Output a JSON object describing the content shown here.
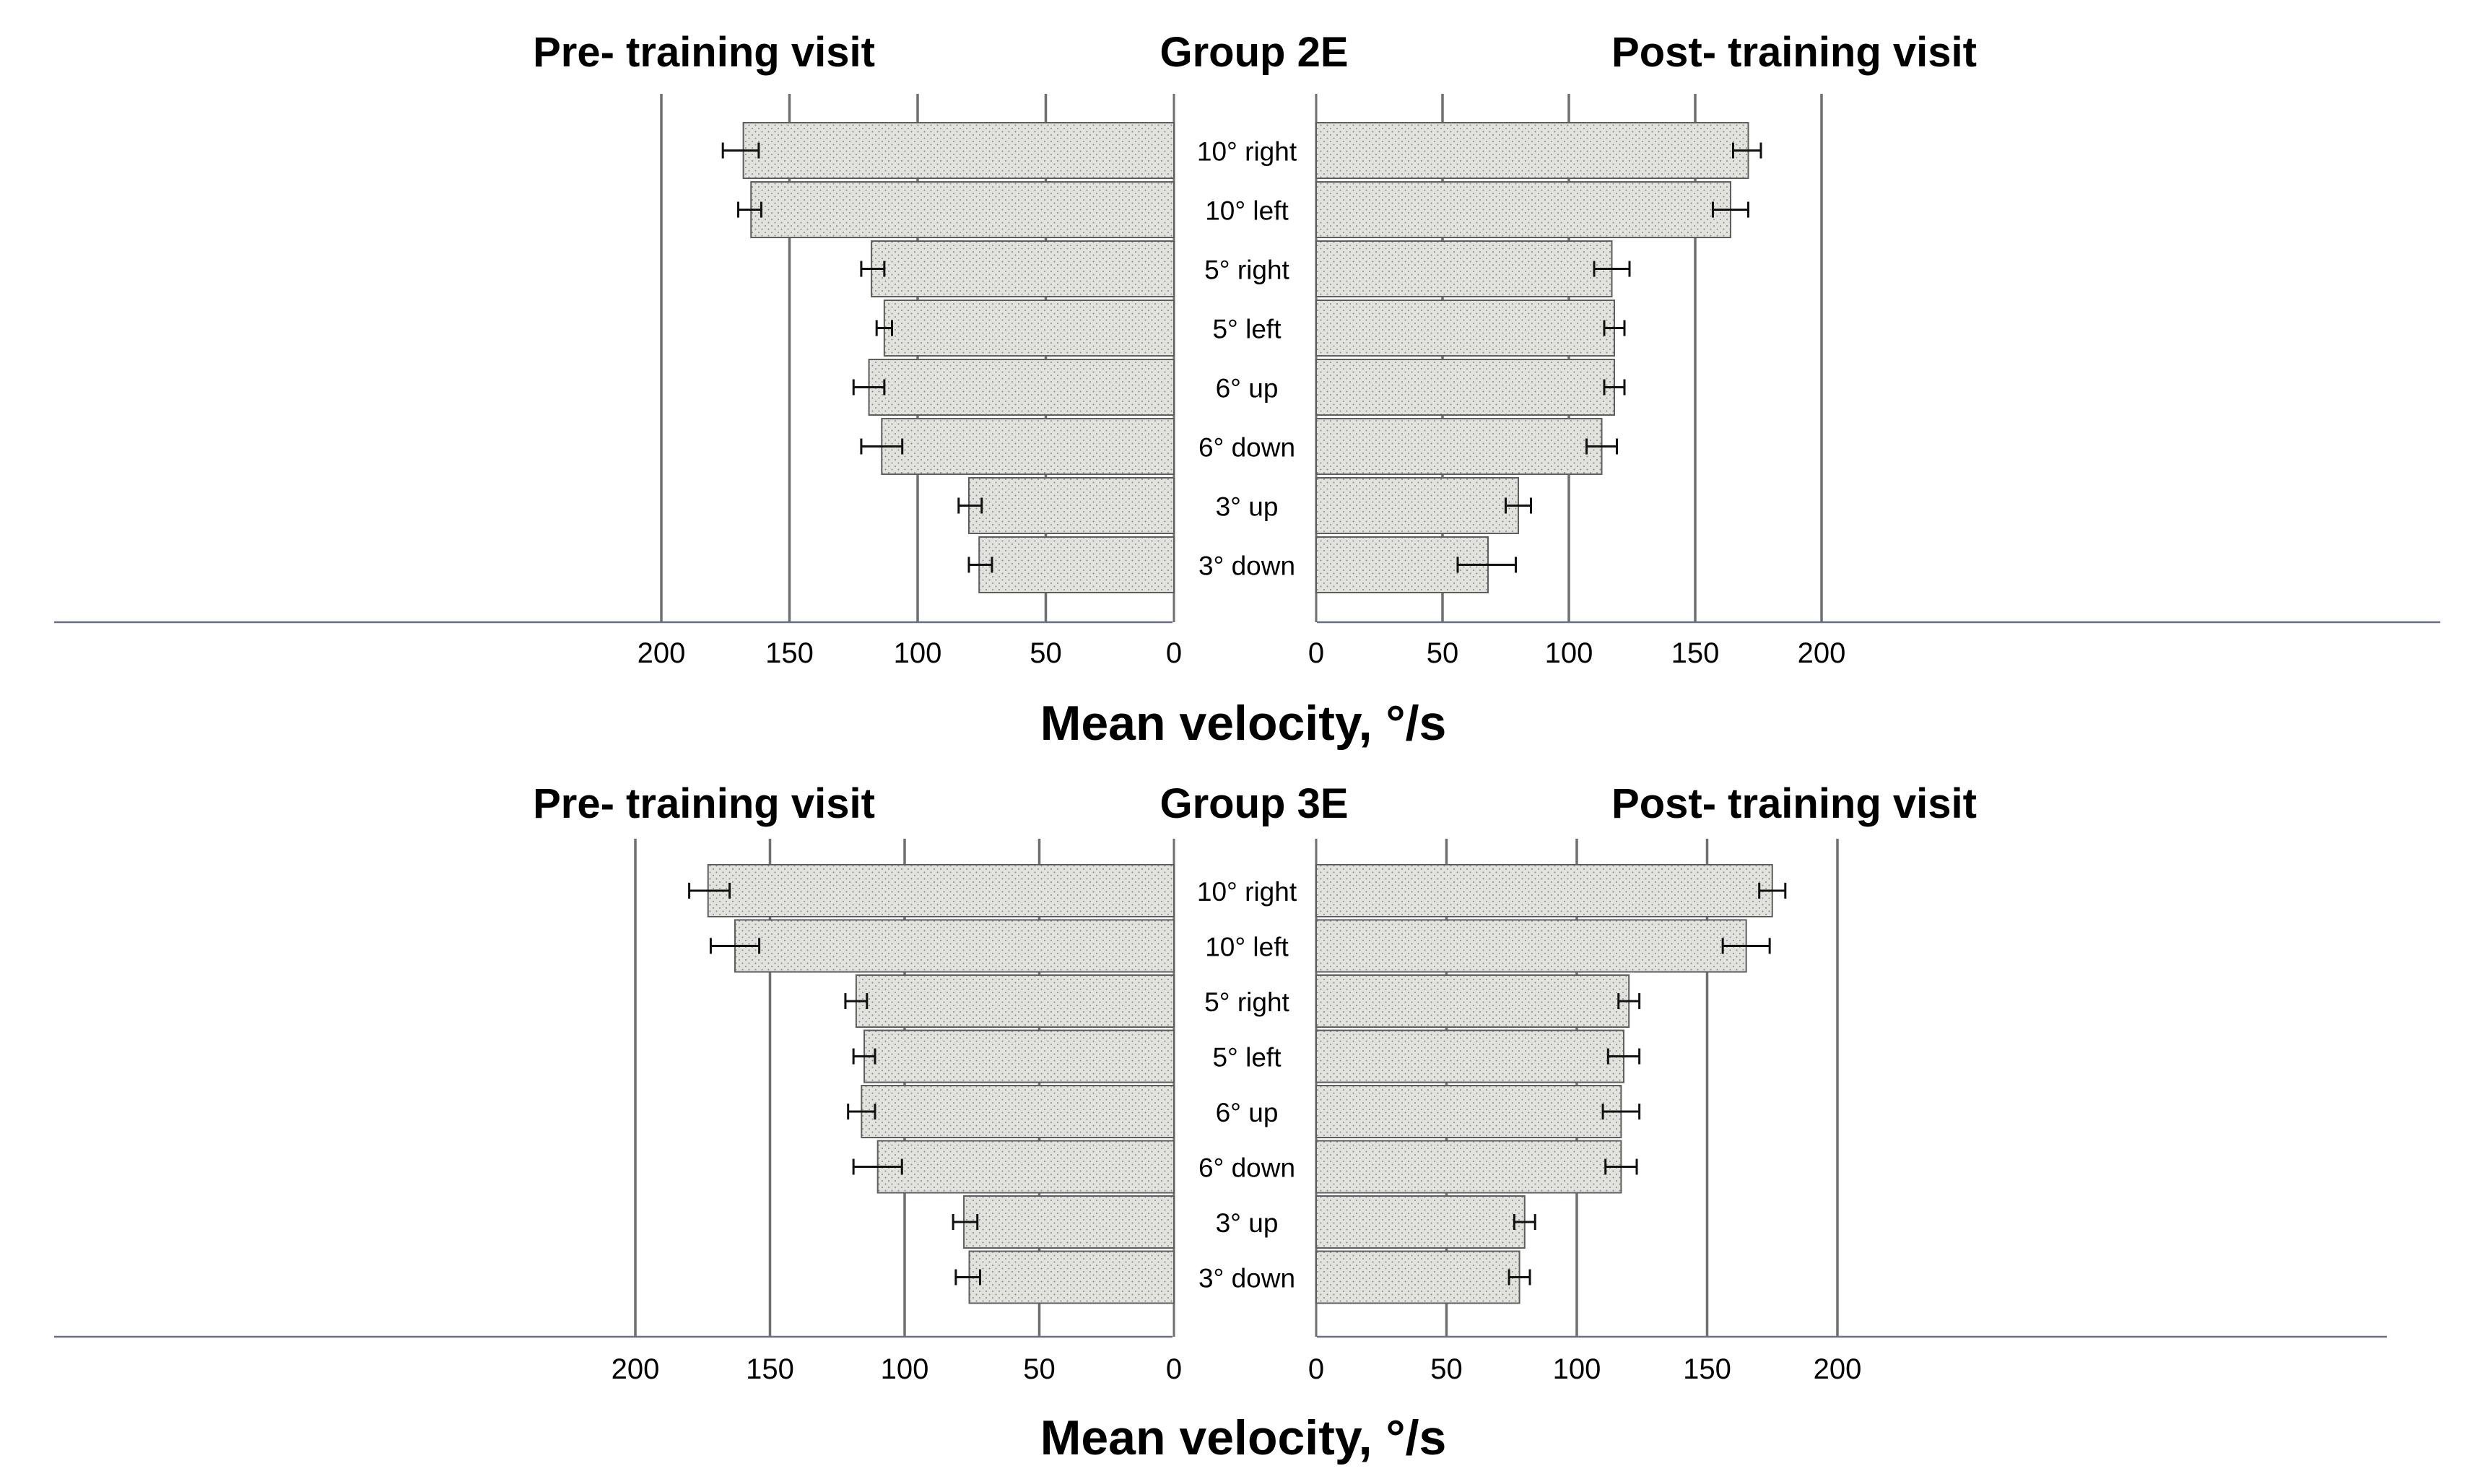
{
  "chart_data": [
    {
      "type": "bar",
      "title": "Group 2E",
      "left_title": "Pre- training visit",
      "right_title": "Post- training visit",
      "xlabel": "Mean velocity, °/s",
      "categories": [
        "10° right",
        "10° left",
        "5° right",
        "5° left",
        "6° up",
        "6° down",
        "3° up",
        "3° down"
      ],
      "ticks": [
        0,
        50,
        100,
        150,
        200
      ],
      "ylim": [
        0,
        200
      ],
      "series": [
        {
          "name": "Pre- training visit",
          "values": [
            168,
            165,
            118,
            113,
            119,
            114,
            80,
            76
          ],
          "err_low": [
            6,
            4,
            5,
            3,
            6,
            8,
            5,
            5
          ],
          "err_high": [
            8,
            5,
            4,
            3,
            6,
            8,
            4,
            4
          ]
        },
        {
          "name": "Post- training visit",
          "values": [
            171,
            164,
            117,
            118,
            118,
            113,
            80,
            68
          ],
          "err_low": [
            6,
            7,
            7,
            4,
            4,
            6,
            5,
            12
          ],
          "err_high": [
            5,
            7,
            7,
            4,
            4,
            6,
            5,
            11
          ]
        }
      ]
    },
    {
      "type": "bar",
      "title": "Group 3E",
      "left_title": "Pre- training visit",
      "right_title": "Post- training visit",
      "xlabel": "Mean velocity, °/s",
      "categories": [
        "10° right",
        "10° left",
        "5° right",
        "5° left",
        "6° up",
        "6° down",
        "3° up",
        "3° down"
      ],
      "ticks": [
        0,
        50,
        100,
        150,
        200
      ],
      "ylim": [
        0,
        200
      ],
      "series": [
        {
          "name": "Pre- training visit",
          "values": [
            173,
            163,
            118,
            115,
            116,
            110,
            78,
            76
          ],
          "err_low": [
            8,
            9,
            4,
            4,
            5,
            9,
            5,
            4
          ],
          "err_high": [
            7,
            9,
            4,
            4,
            5,
            9,
            4,
            5
          ]
        },
        {
          "name": "Post- training visit",
          "values": [
            175,
            165,
            120,
            118,
            117,
            117,
            80,
            78
          ],
          "err_low": [
            5,
            9,
            4,
            6,
            7,
            6,
            4,
            4
          ],
          "err_high": [
            5,
            9,
            4,
            6,
            7,
            6,
            4,
            4
          ]
        }
      ]
    }
  ]
}
